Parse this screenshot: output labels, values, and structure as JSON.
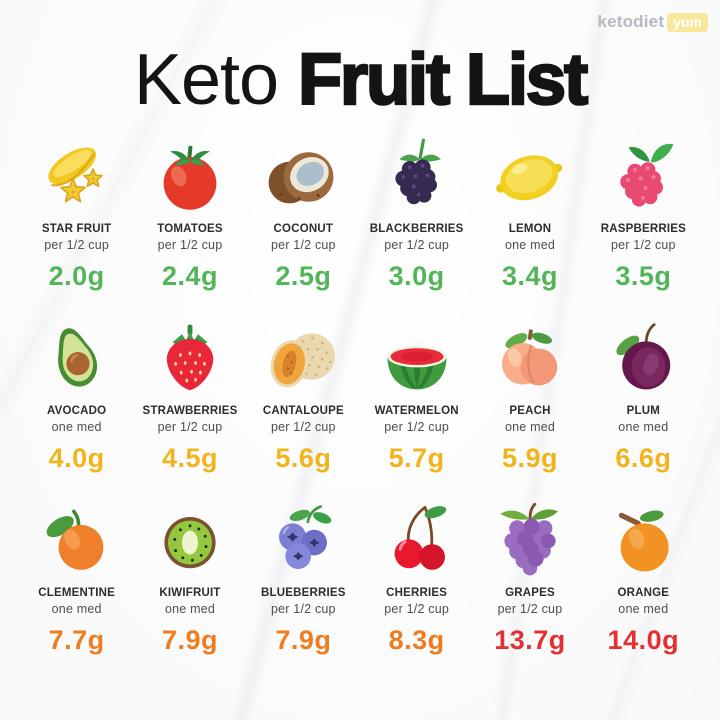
{
  "logo": {
    "brand": "ketodiet",
    "badge": "yum"
  },
  "title": {
    "regular": "Keto",
    "bold": "Fruit List"
  },
  "value_colors": {
    "green": "#53b559",
    "gold": "#f2b41d",
    "orange": "#ee7d1f",
    "red": "#e33030"
  },
  "fruits": [
    {
      "id": "star-fruit",
      "icon": "star-fruit-icon",
      "name": "STAR FRUIT",
      "serving": "per 1/2 cup",
      "value": "2.0g",
      "level": "green"
    },
    {
      "id": "tomatoes",
      "icon": "tomato-icon",
      "name": "TOMATOES",
      "serving": "per 1/2 cup",
      "value": "2.4g",
      "level": "green"
    },
    {
      "id": "coconut",
      "icon": "coconut-icon",
      "name": "COCONUT",
      "serving": "per 1/2 cup",
      "value": "2.5g",
      "level": "green"
    },
    {
      "id": "blackberries",
      "icon": "blackberries-icon",
      "name": "BLACKBERRIES",
      "serving": "per 1/2 cup",
      "value": "3.0g",
      "level": "green"
    },
    {
      "id": "lemon",
      "icon": "lemon-icon",
      "name": "LEMON",
      "serving": "one med",
      "value": "3.4g",
      "level": "green"
    },
    {
      "id": "raspberries",
      "icon": "raspberries-icon",
      "name": "RASPBERRIES",
      "serving": "per 1/2 cup",
      "value": "3.5g",
      "level": "green"
    },
    {
      "id": "avocado",
      "icon": "avocado-icon",
      "name": "AVOCADO",
      "serving": "one med",
      "value": "4.0g",
      "level": "gold"
    },
    {
      "id": "strawberries",
      "icon": "strawberries-icon",
      "name": "STRAWBERRIES",
      "serving": "per 1/2 cup",
      "value": "4.5g",
      "level": "gold"
    },
    {
      "id": "cantaloupe",
      "icon": "cantaloupe-icon",
      "name": "CANTALOUPE",
      "serving": "per 1/2 cup",
      "value": "5.6g",
      "level": "gold"
    },
    {
      "id": "watermelon",
      "icon": "watermelon-icon",
      "name": "WATERMELON",
      "serving": "per 1/2 cup",
      "value": "5.7g",
      "level": "gold"
    },
    {
      "id": "peach",
      "icon": "peach-icon",
      "name": "PEACH",
      "serving": "one med",
      "value": "5.9g",
      "level": "gold"
    },
    {
      "id": "plum",
      "icon": "plum-icon",
      "name": "PLUM",
      "serving": "one med",
      "value": "6.6g",
      "level": "gold"
    },
    {
      "id": "clementine",
      "icon": "clementine-icon",
      "name": "CLEMENTINE",
      "serving": "one med",
      "value": "7.7g",
      "level": "orange"
    },
    {
      "id": "kiwifruit",
      "icon": "kiwifruit-icon",
      "name": "KIWIFRUIT",
      "serving": "one med",
      "value": "7.9g",
      "level": "orange"
    },
    {
      "id": "blueberries",
      "icon": "blueberries-icon",
      "name": "BLUEBERRIES",
      "serving": "per 1/2 cup",
      "value": "7.9g",
      "level": "orange"
    },
    {
      "id": "cherries",
      "icon": "cherries-icon",
      "name": "CHERRIES",
      "serving": "per 1/2 cup",
      "value": "8.3g",
      "level": "orange"
    },
    {
      "id": "grapes",
      "icon": "grapes-icon",
      "name": "GRAPES",
      "serving": "per 1/2 cup",
      "value": "13.7g",
      "level": "red"
    },
    {
      "id": "orange",
      "icon": "orange-icon",
      "name": "ORANGE",
      "serving": "one med",
      "value": "14.0g",
      "level": "red"
    }
  ]
}
